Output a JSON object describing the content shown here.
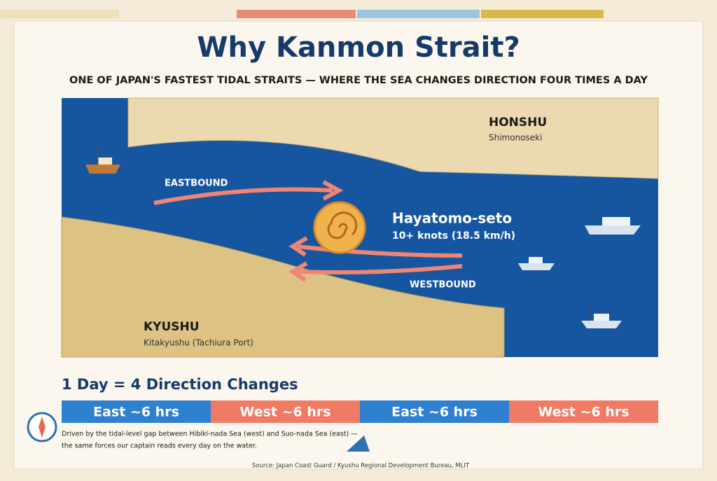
{
  "header": {
    "title": "Why Kanmon Strait?",
    "subtitle": "ONE OF JAPAN'S FASTEST TIDAL STRAITS — WHERE THE SEA CHANGES DIRECTION FOUR TIMES A DAY"
  },
  "map": {
    "north": {
      "name": "HONSHU",
      "city": "Shimonoseki"
    },
    "south": {
      "name": "KYUSHU",
      "city": "Kitakyushu (Tachiura Port)"
    },
    "eastbound": "EASTBOUND",
    "westbound": "WESTBOUND",
    "narrows": {
      "name": "Hayatomo-seto",
      "speed": "10+ knots (18.5 km/h)"
    }
  },
  "timeline": {
    "heading": "1 Day = 4 Direction Changes",
    "segments": [
      "East ~6 hrs",
      "West ~6 hrs",
      "East ~6 hrs",
      "West ~6 hrs"
    ]
  },
  "footnote": [
    "Driven by the tidal-level gap between Hibiki-nada Sea (west) and Suo-nada Sea (east) —",
    "the same forces our captain reads every day on the water."
  ],
  "source": "Source:  Japan Coast Guard / Kyushu Regional Development Bureau, MLIT"
}
